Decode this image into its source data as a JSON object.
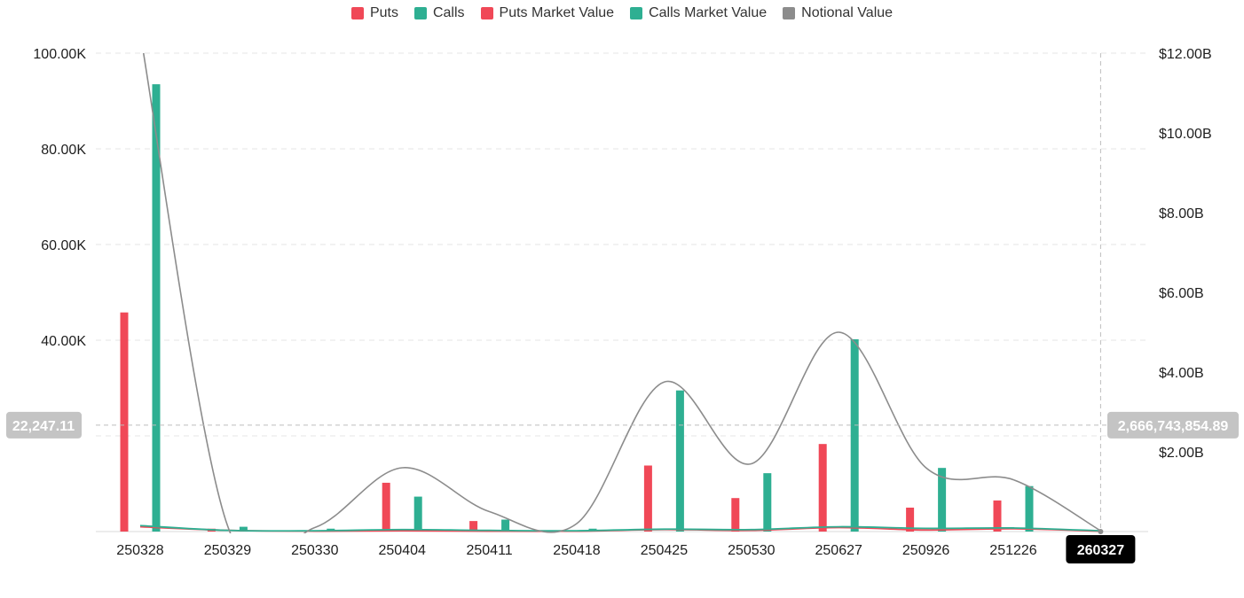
{
  "legend": [
    {
      "label": "Puts",
      "color": "#f04857"
    },
    {
      "label": "Calls",
      "color": "#2eaf92"
    },
    {
      "label": "Puts Market Value",
      "color": "#f04857"
    },
    {
      "label": "Calls Market Value",
      "color": "#2eaf92"
    },
    {
      "label": "Notional Value",
      "color": "#8c8c8c"
    }
  ],
  "chart_data": {
    "type": "bar",
    "categories": [
      "250328",
      "250329",
      "250330",
      "250404",
      "250411",
      "250418",
      "250425",
      "250530",
      "250627",
      "250926",
      "251226",
      "260327"
    ],
    "y_left": {
      "ticks": [
        "100.00K",
        "80.00K",
        "60.00K",
        "40.00K"
      ],
      "tick_values": [
        100000,
        80000,
        60000,
        40000
      ],
      "range": [
        0,
        100000
      ]
    },
    "y_right": {
      "ticks": [
        "$12.00B",
        "$10.00B",
        "$8.00B",
        "$6.00B",
        "$4.00B",
        "$2.00B"
      ],
      "tick_values": [
        12,
        10,
        8,
        6,
        4,
        2
      ],
      "range": [
        0,
        12
      ]
    },
    "series": [
      {
        "name": "Puts",
        "kind": "bar",
        "axis": "left",
        "color": "#f04857",
        "values": [
          45800,
          600,
          0,
          10200,
          2200,
          200,
          13800,
          7000,
          18300,
          5000,
          6500,
          0
        ]
      },
      {
        "name": "Calls",
        "kind": "bar",
        "axis": "left",
        "color": "#2eaf92",
        "values": [
          93500,
          1000,
          600,
          7300,
          2500,
          600,
          29500,
          12200,
          40200,
          13300,
          9500,
          0
        ]
      },
      {
        "name": "Puts Market Value",
        "kind": "line",
        "axis": "right",
        "color": "#f04857",
        "values": [
          0.12,
          0.03,
          0.01,
          0.02,
          0.01,
          0.01,
          0.05,
          0.03,
          0.1,
          0.04,
          0.07,
          0.01
        ]
      },
      {
        "name": "Calls Market Value",
        "kind": "line",
        "axis": "right",
        "color": "#2eaf92",
        "values": [
          0.15,
          0.03,
          0.02,
          0.05,
          0.03,
          0.02,
          0.06,
          0.05,
          0.12,
          0.08,
          0.09,
          0.02
        ]
      },
      {
        "name": "Notional Value",
        "kind": "line",
        "axis": "right",
        "color": "#8c8c8c",
        "values": [
          12.5,
          0.15,
          0.1,
          1.6,
          0.5,
          0.2,
          3.75,
          1.7,
          5.0,
          1.6,
          1.3,
          0.02
        ]
      }
    ],
    "crosshair": {
      "left_label": "22,247.11",
      "left_value": 22247.11,
      "right_label": "2,666,743,854.89",
      "highlight_category": "260327"
    },
    "grid": true
  }
}
